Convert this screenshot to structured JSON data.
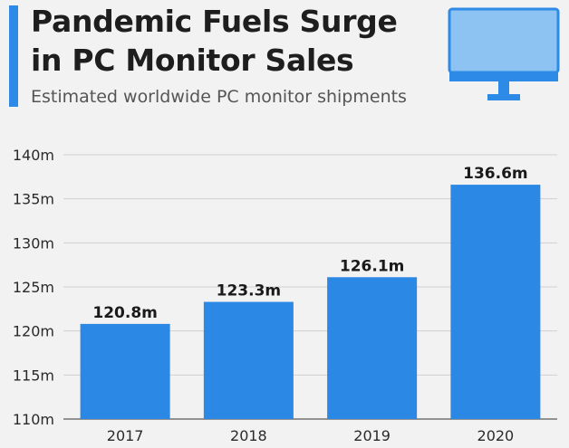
{
  "header": {
    "title_line1": "Pandemic Fuels Surge",
    "title_line2": "in PC Monitor Sales",
    "subtitle": "Estimated worldwide PC monitor shipments",
    "icon": "monitor-icon"
  },
  "colors": {
    "accent": "#2d8ae6",
    "bar": "#2b88e4",
    "background": "#f2f2f2",
    "grid": "#d0d0d0",
    "monitor_screen": "#8cc3f2"
  },
  "chart_data": {
    "type": "bar",
    "title": "Pandemic Fuels Surge in PC Monitor Sales",
    "subtitle": "Estimated worldwide PC monitor shipments",
    "categories": [
      "2017",
      "2018",
      "2019",
      "2020"
    ],
    "values": [
      120.8,
      123.3,
      126.1,
      136.6
    ],
    "data_labels": [
      "120.8m",
      "123.3m",
      "126.1m",
      "136.6m"
    ],
    "ylim": [
      110,
      140
    ],
    "y_ticks": [
      110,
      115,
      120,
      125,
      130,
      135,
      140
    ],
    "y_tick_labels": [
      "110m",
      "115m",
      "120m",
      "125m",
      "130m",
      "135m",
      "140m"
    ],
    "xlabel": "",
    "ylabel": "",
    "grid": true,
    "legend": "none"
  }
}
